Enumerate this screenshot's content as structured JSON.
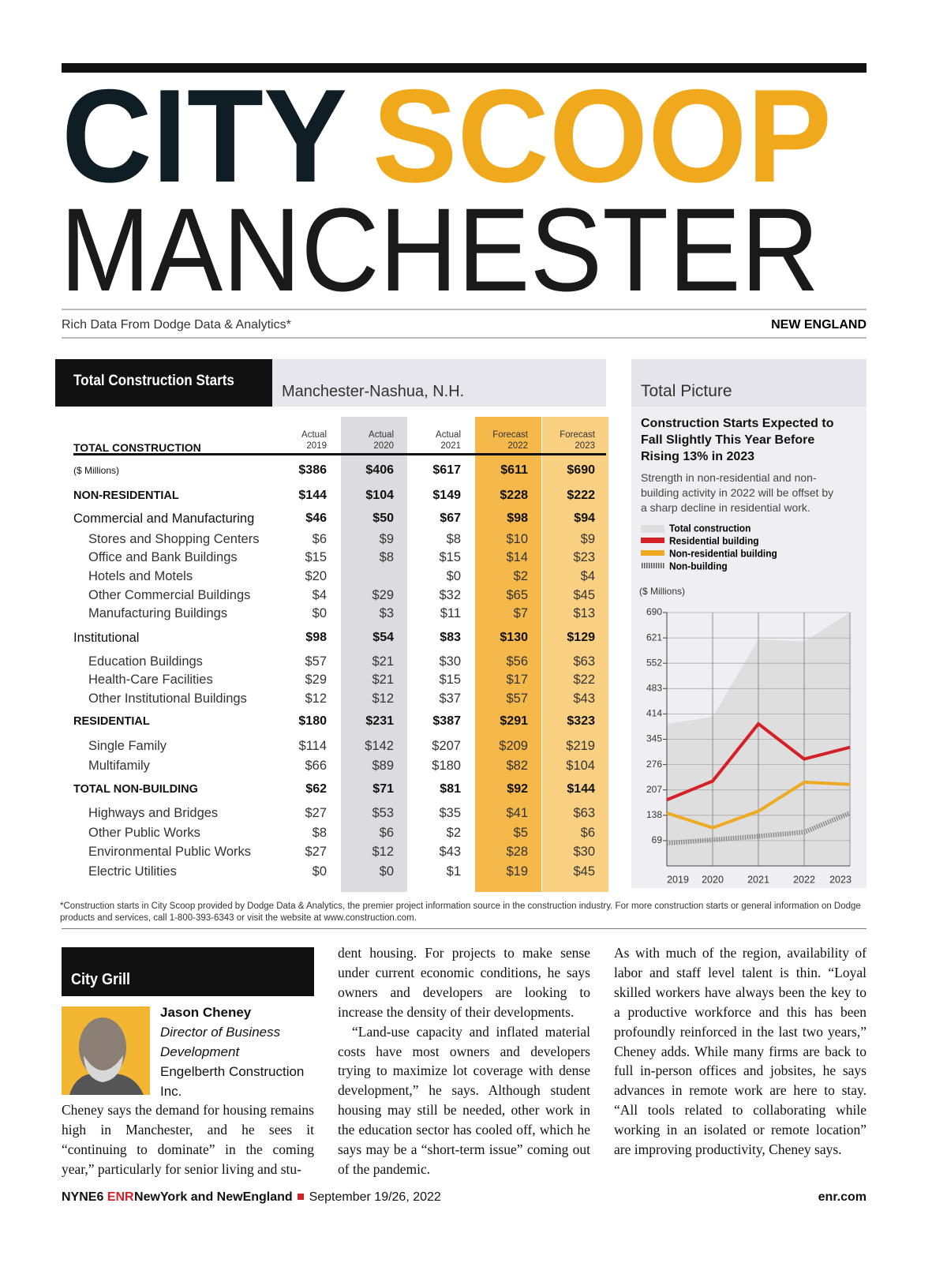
{
  "header": {
    "title_1": "CITY",
    "title_2": "SCOOP",
    "title_3": "MANCHESTER",
    "tagline": "Rich Data From Dodge Data & Analytics*",
    "region": "NEW ENGLAND"
  },
  "table": {
    "title": "Total Construction Starts",
    "region": "Manchester-Nashua, N.H.",
    "section": "TOTAL CONSTRUCTION",
    "columns": [
      {
        "kind": "Actual",
        "year": "2019"
      },
      {
        "kind": "Actual",
        "year": "2020",
        "color": "#dcdcde"
      },
      {
        "kind": "Actual",
        "year": "2021"
      },
      {
        "kind": "Forecast",
        "year": "2022",
        "color": "#f5b84a"
      },
      {
        "kind": "Forecast",
        "year": "2023",
        "color": "#f9cf82"
      }
    ],
    "rows": [
      {
        "label": "($ Millions)",
        "level": "unit",
        "values": [
          "$386",
          "$406",
          "$617",
          "$611",
          "$690"
        ]
      },
      {
        "label": "NON-RESIDENTIAL",
        "level": "total",
        "values": [
          "$144",
          "$104",
          "$149",
          "$228",
          "$222"
        ]
      },
      {
        "label": "Commercial and Manufacturing",
        "level": "group",
        "values": [
          "$46",
          "$50",
          "$67",
          "$98",
          "$94"
        ]
      },
      {
        "label": "Stores and Shopping Centers",
        "level": "item",
        "values": [
          "$6",
          "$9",
          "$8",
          "$10",
          "$9"
        ]
      },
      {
        "label": "Office and Bank Buildings",
        "level": "item",
        "values": [
          "$15",
          "$8",
          "$15",
          "$14",
          "$23"
        ]
      },
      {
        "label": "Hotels and Motels",
        "level": "item",
        "values": [
          "$20",
          null,
          "$0",
          "$2",
          "$4"
        ]
      },
      {
        "label": "Other Commercial Buildings",
        "level": "item",
        "values": [
          "$4",
          "$29",
          "$32",
          "$65",
          "$45"
        ]
      },
      {
        "label": "Manufacturing Buildings",
        "level": "item",
        "values": [
          "$0",
          "$3",
          "$11",
          "$7",
          "$13"
        ]
      },
      {
        "label": "Institutional",
        "level": "group",
        "values": [
          "$98",
          "$54",
          "$83",
          "$130",
          "$129"
        ]
      },
      {
        "label": "Education Buildings",
        "level": "item",
        "values": [
          "$57",
          "$21",
          "$30",
          "$56",
          "$63"
        ]
      },
      {
        "label": "Health-Care Facilities",
        "level": "item",
        "values": [
          "$29",
          "$21",
          "$15",
          "$17",
          "$22"
        ]
      },
      {
        "label": "Other Institutional Buildings",
        "level": "item",
        "values": [
          "$12",
          "$12",
          "$37",
          "$57",
          "$43"
        ]
      },
      {
        "label": "RESIDENTIAL",
        "level": "total",
        "values": [
          "$180",
          "$231",
          "$387",
          "$291",
          "$323"
        ]
      },
      {
        "label": "Single Family",
        "level": "item",
        "values": [
          "$114",
          "$142",
          "$207",
          "$209",
          "$219"
        ]
      },
      {
        "label": "Multifamily",
        "level": "item",
        "values": [
          "$66",
          "$89",
          "$180",
          "$82",
          "$104"
        ]
      },
      {
        "label": "TOTAL NON-BUILDING",
        "level": "total",
        "values": [
          "$62",
          "$71",
          "$81",
          "$92",
          "$144"
        ]
      },
      {
        "label": "Highways and Bridges",
        "level": "item",
        "values": [
          "$27",
          "$53",
          "$35",
          "$41",
          "$63"
        ]
      },
      {
        "label": "Other Public Works",
        "level": "item",
        "values": [
          "$8",
          "$6",
          "$2",
          "$5",
          "$6"
        ]
      },
      {
        "label": "Environmental Public Works",
        "level": "item",
        "values": [
          "$27",
          "$12",
          "$43",
          "$28",
          "$30"
        ]
      },
      {
        "label": "Electric Utilities",
        "level": "item",
        "values": [
          "$0",
          "$0",
          "$1",
          "$19",
          "$45"
        ]
      }
    ]
  },
  "chart_data": {
    "type": "line",
    "panel_title": "Total Picture",
    "title": "Construction Starts Expected to Fall Slightly This Year Before Rising 13% in 2023",
    "subtitle": "Strength in non-residential and non-building activity in 2022 will be offset by a sharp decline in residential work.",
    "y_label": "($ Millions)",
    "categories": [
      "2019",
      "2020",
      "2021",
      "2022",
      "2023"
    ],
    "series": [
      {
        "name": "Total construction",
        "color": "#dedede",
        "style": "area",
        "values": [
          386,
          406,
          617,
          611,
          690
        ]
      },
      {
        "name": "Residential building",
        "color": "#d42027",
        "values": [
          180,
          231,
          387,
          291,
          323
        ]
      },
      {
        "name": "Non-residential building",
        "color": "#eeaa22",
        "values": [
          144,
          104,
          149,
          228,
          222
        ]
      },
      {
        "name": "Non-building",
        "color": "#8a8a8a",
        "style": "hatched",
        "values": [
          62,
          71,
          81,
          92,
          144
        ]
      }
    ],
    "ylim": [
      0,
      690
    ],
    "yticks": [
      69,
      138,
      207,
      276,
      345,
      414,
      483,
      552,
      621,
      690
    ],
    "grid": true
  },
  "footnote": "*Construction starts in City Scoop provided by Dodge Data & Analytics, the premier project information source in the construction industry. For more construction starts or general information on Dodge products and services, call 1-800-393-6343 or visit the website at www.construction.com.",
  "profile": {
    "heading": "City Grill",
    "name": "Jason Cheney",
    "role": "Director of Business Development",
    "company": "Engelberth Construction Inc."
  },
  "article": {
    "columns": [
      [
        "Cheney says the demand for housing remains high in Manchester, and he sees it “continuing to dominate” in the coming year,” particularly for senior living and stu-"
      ],
      [
        "dent housing. For projects to make sense under current economic conditions, he says owners and developers are looking to increase the density of their developments.",
        "“Land-use capacity and inflated material costs have most owners and developers trying to maximize lot coverage with dense development,” he says. Although student housing may still be needed, other work in the education sector has cooled off, which he says may be a “short-term issue” coming out of the pandemic."
      ],
      [
        "As with much of the region, availability of labor and staff level talent is thin. “Loyal skilled workers have always been the key to a productive workforce and this has been profoundly reinforced in the last two years,” Cheney adds. While many firms are back to full in-person offices and jobsites, he says advances in remote work are here to stay. “All tools related to collaborating while working in an isolated or remote location” are improving productivity, Cheney says."
      ]
    ]
  },
  "footer": {
    "page": "NYNE6",
    "brand": "ENR",
    "edition": "NewYork and NewEngland",
    "date": "September 19/26, 2022",
    "site": "enr.com"
  }
}
